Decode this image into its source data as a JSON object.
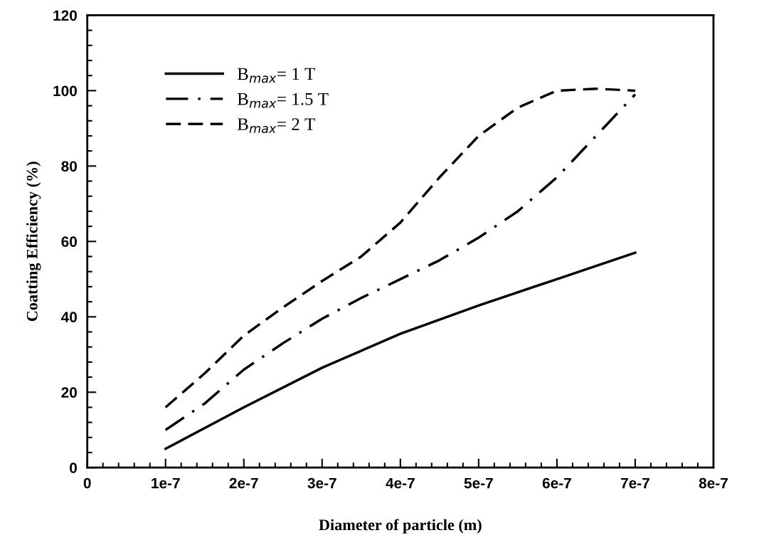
{
  "chart_data": {
    "type": "line",
    "xlabel": "Diameter of particle (m)",
    "ylabel": "Coatting Efficiency (%)",
    "xlim": [
      0,
      8e-07
    ],
    "ylim": [
      0,
      120
    ],
    "xticks": [
      0,
      {
        "value": 1e-07,
        "label": "1e-7"
      },
      {
        "value": 2e-07,
        "label": "2e-7"
      },
      {
        "value": 3e-07,
        "label": "3e-7"
      },
      {
        "value": 4e-07,
        "label": "4e-7"
      },
      {
        "value": 5e-07,
        "label": "5e-7"
      },
      {
        "value": 6e-07,
        "label": "6e-7"
      },
      {
        "value": 7e-07,
        "label": "7e-7"
      },
      {
        "value": 8e-07,
        "label": "8e-7"
      }
    ],
    "yticks": [
      0,
      20,
      40,
      60,
      80,
      100,
      120
    ],
    "grid": false,
    "legend": "top left",
    "marker": "none",
    "series": [
      {
        "name": "B$_{max}$= 1 T",
        "color": "#000000",
        "line_style": "solid",
        "x": [
          1e-07,
          2e-07,
          3e-07,
          4e-07,
          5e-07,
          6e-07,
          7e-07
        ],
        "values": [
          5,
          16,
          26.5,
          35.5,
          43,
          50,
          57
        ]
      },
      {
        "name": "B$_{max}$= 1.5 T",
        "color": "#000000",
        "line_style": "dashdot",
        "x": [
          1e-07,
          1.5e-07,
          2e-07,
          2.5e-07,
          3e-07,
          3.5e-07,
          4e-07,
          4.5e-07,
          5e-07,
          5.5e-07,
          6e-07,
          6.5e-07,
          7e-07
        ],
        "values": [
          10,
          17,
          26,
          33,
          39.5,
          45,
          50,
          55,
          61,
          68,
          77,
          88,
          99
        ]
      },
      {
        "name": "B$_{max}$= 2 T",
        "color": "#000000",
        "line_style": "dashed",
        "x": [
          1e-07,
          1.5e-07,
          2e-07,
          2.5e-07,
          3e-07,
          3.5e-07,
          4e-07,
          4.5e-07,
          5e-07,
          5.5e-07,
          6e-07,
          6.5e-07,
          7e-07
        ],
        "values": [
          16,
          25,
          35,
          42.5,
          49.5,
          56,
          65,
          77,
          88,
          95.5,
          100,
          100.5,
          100
        ]
      }
    ]
  }
}
